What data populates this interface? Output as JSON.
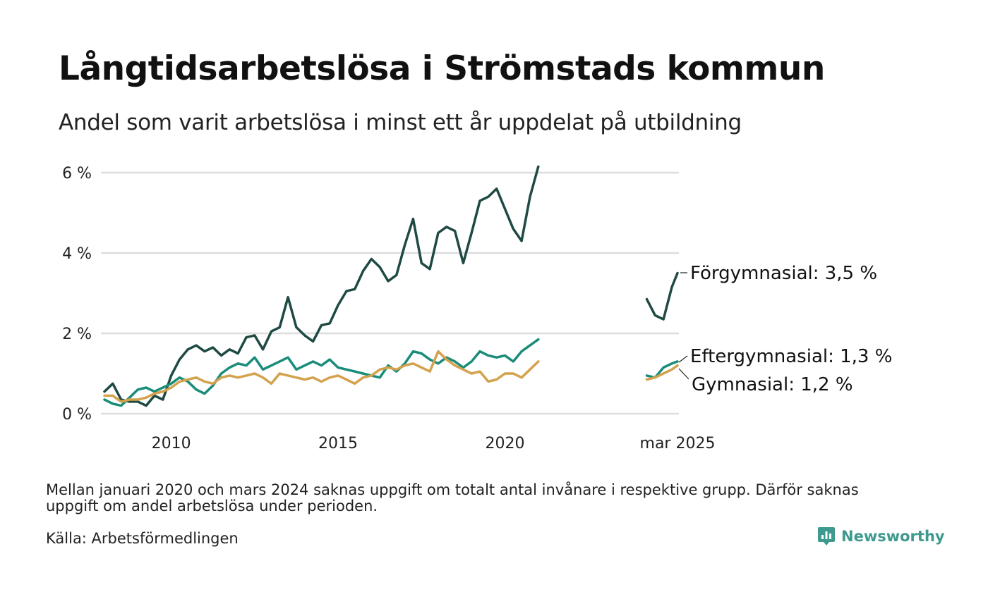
{
  "title": "Långtidsarbetslösa i Strömstads kommun",
  "subtitle": "Andel som varit arbetslösa i minst ett år uppdelat på utbildning",
  "footnote": "Mellan januari 2020 och mars 2024 saknas uppgift om totalt antal invånare i respektive grupp. Därför saknas uppgift om andel arbetslösa under perioden.",
  "source": "Källa: Arbetsförmedlingen",
  "logo": {
    "text": "Newsworthy",
    "icon": "bar-chart-speech-icon"
  },
  "colors": {
    "forgymnasial": "#1f4a43",
    "eftergymnasial": "#1a8c7a",
    "gymnasial": "#d4a24c",
    "grid": "#dddddd",
    "logo": "#3e9a8e"
  },
  "chart_data": {
    "type": "line",
    "ylim": [
      0,
      6.2
    ],
    "y_ticks": [
      {
        "value": 0,
        "label": "0 %"
      },
      {
        "value": 2,
        "label": "2 %"
      },
      {
        "value": 4,
        "label": "4 %"
      },
      {
        "value": 6,
        "label": "6 %"
      }
    ],
    "x_ticks": [
      {
        "value": 2010.0,
        "label": "2010"
      },
      {
        "value": 2015.0,
        "label": "2015"
      },
      {
        "value": 2020.0,
        "label": "2020"
      },
      {
        "value": 2025.17,
        "label": "mar 2025"
      }
    ],
    "grid": true,
    "series": [
      {
        "name": "Förgymnasial",
        "end_label": "Förgymnasial: 3,5 %",
        "color": "#1f4a43",
        "segments": [
          [
            [
              2008.0,
              0.55
            ],
            [
              2008.25,
              0.75
            ],
            [
              2008.5,
              0.35
            ],
            [
              2008.75,
              0.3
            ],
            [
              2009.0,
              0.3
            ],
            [
              2009.25,
              0.2
            ],
            [
              2009.5,
              0.45
            ],
            [
              2009.75,
              0.35
            ],
            [
              2010.0,
              0.95
            ],
            [
              2010.25,
              1.35
            ],
            [
              2010.5,
              1.6
            ],
            [
              2010.75,
              1.7
            ],
            [
              2011.0,
              1.55
            ],
            [
              2011.25,
              1.65
            ],
            [
              2011.5,
              1.45
            ],
            [
              2011.75,
              1.6
            ],
            [
              2012.0,
              1.5
            ],
            [
              2012.25,
              1.9
            ],
            [
              2012.5,
              1.95
            ],
            [
              2012.75,
              1.6
            ],
            [
              2013.0,
              2.05
            ],
            [
              2013.25,
              2.15
            ],
            [
              2013.5,
              2.9
            ],
            [
              2013.75,
              2.15
            ],
            [
              2014.0,
              1.95
            ],
            [
              2014.25,
              1.8
            ],
            [
              2014.5,
              2.2
            ],
            [
              2014.75,
              2.25
            ],
            [
              2015.0,
              2.7
            ],
            [
              2015.25,
              3.05
            ],
            [
              2015.5,
              3.1
            ],
            [
              2015.75,
              3.55
            ],
            [
              2016.0,
              3.85
            ],
            [
              2016.25,
              3.65
            ],
            [
              2016.5,
              3.3
            ],
            [
              2016.75,
              3.45
            ],
            [
              2017.0,
              4.2
            ],
            [
              2017.25,
              4.85
            ],
            [
              2017.5,
              3.75
            ],
            [
              2017.75,
              3.6
            ],
            [
              2018.0,
              4.5
            ],
            [
              2018.25,
              4.65
            ],
            [
              2018.5,
              4.55
            ],
            [
              2018.75,
              3.75
            ],
            [
              2019.0,
              4.5
            ],
            [
              2019.25,
              5.3
            ],
            [
              2019.5,
              5.4
            ],
            [
              2019.75,
              5.6
            ],
            [
              2020.0,
              5.1
            ],
            [
              2020.25,
              4.6
            ],
            [
              2020.5,
              4.3
            ],
            [
              2020.75,
              5.4
            ],
            [
              2021.0,
              6.15
            ]
          ],
          [
            [
              2024.25,
              2.85
            ],
            [
              2024.5,
              2.45
            ],
            [
              2024.75,
              2.35
            ],
            [
              2025.0,
              3.15
            ],
            [
              2025.17,
              3.5
            ]
          ]
        ]
      },
      {
        "name": "Eftergymnasial",
        "end_label": "Eftergymnasial: 1,3 %",
        "color": "#1a8c7a",
        "segments": [
          [
            [
              2008.0,
              0.35
            ],
            [
              2008.25,
              0.25
            ],
            [
              2008.5,
              0.2
            ],
            [
              2008.75,
              0.4
            ],
            [
              2009.0,
              0.6
            ],
            [
              2009.25,
              0.65
            ],
            [
              2009.5,
              0.55
            ],
            [
              2009.75,
              0.65
            ],
            [
              2010.0,
              0.75
            ],
            [
              2010.25,
              0.9
            ],
            [
              2010.5,
              0.8
            ],
            [
              2010.75,
              0.6
            ],
            [
              2011.0,
              0.5
            ],
            [
              2011.25,
              0.7
            ],
            [
              2011.5,
              1.0
            ],
            [
              2011.75,
              1.15
            ],
            [
              2012.0,
              1.25
            ],
            [
              2012.25,
              1.2
            ],
            [
              2012.5,
              1.4
            ],
            [
              2012.75,
              1.1
            ],
            [
              2013.0,
              1.2
            ],
            [
              2013.25,
              1.3
            ],
            [
              2013.5,
              1.4
            ],
            [
              2013.75,
              1.1
            ],
            [
              2014.0,
              1.2
            ],
            [
              2014.25,
              1.3
            ],
            [
              2014.5,
              1.2
            ],
            [
              2014.75,
              1.35
            ],
            [
              2015.0,
              1.15
            ],
            [
              2015.25,
              1.1
            ],
            [
              2015.5,
              1.05
            ],
            [
              2015.75,
              1.0
            ],
            [
              2016.0,
              0.95
            ],
            [
              2016.25,
              0.9
            ],
            [
              2016.5,
              1.2
            ],
            [
              2016.75,
              1.05
            ],
            [
              2017.0,
              1.25
            ],
            [
              2017.25,
              1.55
            ],
            [
              2017.5,
              1.5
            ],
            [
              2017.75,
              1.35
            ],
            [
              2018.0,
              1.25
            ],
            [
              2018.25,
              1.4
            ],
            [
              2018.5,
              1.3
            ],
            [
              2018.75,
              1.15
            ],
            [
              2019.0,
              1.3
            ],
            [
              2019.25,
              1.55
            ],
            [
              2019.5,
              1.45
            ],
            [
              2019.75,
              1.4
            ],
            [
              2020.0,
              1.45
            ],
            [
              2020.25,
              1.3
            ],
            [
              2020.5,
              1.55
            ],
            [
              2020.75,
              1.7
            ],
            [
              2021.0,
              1.85
            ]
          ],
          [
            [
              2024.25,
              0.95
            ],
            [
              2024.5,
              0.9
            ],
            [
              2024.75,
              1.15
            ],
            [
              2025.0,
              1.25
            ],
            [
              2025.17,
              1.3
            ]
          ]
        ]
      },
      {
        "name": "Gymnasial",
        "end_label": "Gymnasial: 1,2 %",
        "color": "#d4a24c",
        "segments": [
          [
            [
              2008.0,
              0.45
            ],
            [
              2008.25,
              0.45
            ],
            [
              2008.5,
              0.3
            ],
            [
              2008.75,
              0.35
            ],
            [
              2009.0,
              0.35
            ],
            [
              2009.25,
              0.4
            ],
            [
              2009.5,
              0.5
            ],
            [
              2009.75,
              0.55
            ],
            [
              2010.0,
              0.65
            ],
            [
              2010.25,
              0.8
            ],
            [
              2010.5,
              0.85
            ],
            [
              2010.75,
              0.9
            ],
            [
              2011.0,
              0.8
            ],
            [
              2011.25,
              0.75
            ],
            [
              2011.5,
              0.9
            ],
            [
              2011.75,
              0.95
            ],
            [
              2012.0,
              0.9
            ],
            [
              2012.25,
              0.95
            ],
            [
              2012.5,
              1.0
            ],
            [
              2012.75,
              0.9
            ],
            [
              2013.0,
              0.75
            ],
            [
              2013.25,
              1.0
            ],
            [
              2013.5,
              0.95
            ],
            [
              2013.75,
              0.9
            ],
            [
              2014.0,
              0.85
            ],
            [
              2014.25,
              0.9
            ],
            [
              2014.5,
              0.8
            ],
            [
              2014.75,
              0.9
            ],
            [
              2015.0,
              0.95
            ],
            [
              2015.25,
              0.85
            ],
            [
              2015.5,
              0.75
            ],
            [
              2015.75,
              0.9
            ],
            [
              2016.0,
              0.95
            ],
            [
              2016.25,
              1.1
            ],
            [
              2016.5,
              1.15
            ],
            [
              2016.75,
              1.1
            ],
            [
              2017.0,
              1.2
            ],
            [
              2017.25,
              1.25
            ],
            [
              2017.5,
              1.15
            ],
            [
              2017.75,
              1.05
            ],
            [
              2018.0,
              1.55
            ],
            [
              2018.25,
              1.35
            ],
            [
              2018.5,
              1.2
            ],
            [
              2018.75,
              1.1
            ],
            [
              2019.0,
              1.0
            ],
            [
              2019.25,
              1.05
            ],
            [
              2019.5,
              0.8
            ],
            [
              2019.75,
              0.85
            ],
            [
              2020.0,
              1.0
            ],
            [
              2020.25,
              1.0
            ],
            [
              2020.5,
              0.9
            ],
            [
              2020.75,
              1.1
            ],
            [
              2021.0,
              1.3
            ]
          ],
          [
            [
              2024.25,
              0.85
            ],
            [
              2024.5,
              0.9
            ],
            [
              2024.75,
              1.0
            ],
            [
              2025.0,
              1.1
            ],
            [
              2025.17,
              1.2
            ]
          ]
        ]
      }
    ]
  }
}
